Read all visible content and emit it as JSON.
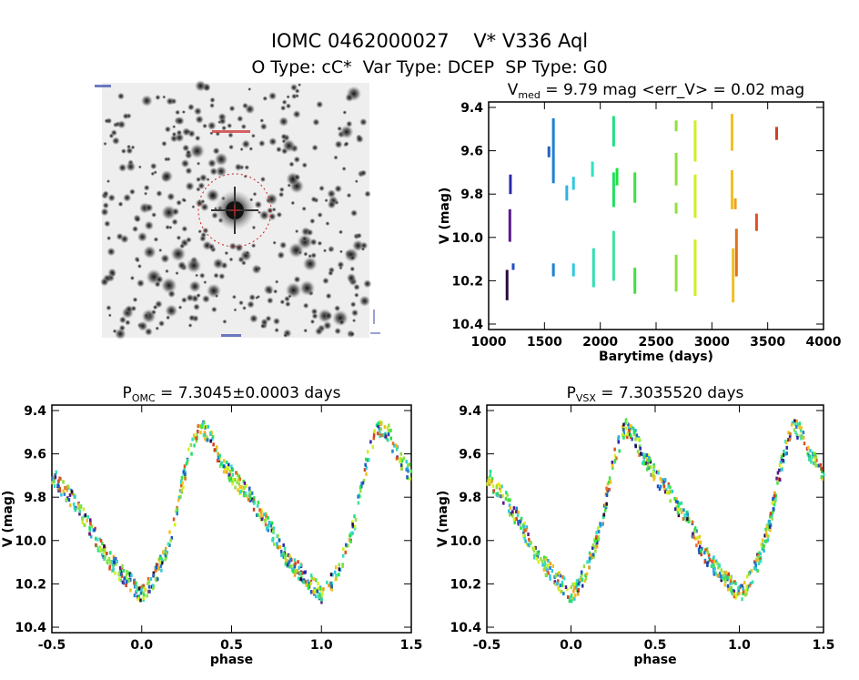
{
  "header": {
    "title": "IOMC 0462000027    V* V336 Aql",
    "subtitle": "O Type: cC*  Var Type: DCEP  SP Type: G0"
  },
  "image_panel": {
    "name": "sky-image-cutout",
    "marker_color": "#cc2222"
  },
  "chart_data": [
    {
      "type": "scatter",
      "title_prefix": "V",
      "title_sub": "med",
      "title_rest": " = 9.79 mag <err_V> = 0.02 mag",
      "xlabel": "Barytime (days)",
      "ylabel": "V (mag)",
      "xlim": [
        1000,
        4000
      ],
      "ylim": [
        10.4,
        9.4
      ],
      "xticks": [
        "1000",
        "1500",
        "2000",
        "2500",
        "3000",
        "3500",
        "4000"
      ],
      "yticks": [
        "9.4",
        "9.6",
        "9.8",
        "10.0",
        "10.2",
        "10.4"
      ],
      "segments": [
        [
          1165,
          10.15,
          10.29,
          "#2a0a3a"
        ],
        [
          1190,
          9.87,
          10.02,
          "#5a1a8a"
        ],
        [
          1195,
          9.71,
          9.8,
          "#2a2aaa"
        ],
        [
          1220,
          10.12,
          10.15,
          "#2050c0"
        ],
        [
          1540,
          9.58,
          9.63,
          "#2060c0"
        ],
        [
          1580,
          9.45,
          9.75,
          "#2080d0"
        ],
        [
          1580,
          10.12,
          10.18,
          "#2080d0"
        ],
        [
          1700,
          9.76,
          9.83,
          "#30b0e0"
        ],
        [
          1760,
          9.72,
          9.78,
          "#30c8e0"
        ],
        [
          1760,
          10.12,
          10.18,
          "#30c8e0"
        ],
        [
          1930,
          9.65,
          9.72,
          "#30e0c0"
        ],
        [
          1940,
          10.05,
          10.23,
          "#30e0b0"
        ],
        [
          2120,
          9.44,
          9.58,
          "#20e080"
        ],
        [
          2120,
          9.7,
          9.86,
          "#20e060"
        ],
        [
          2120,
          9.97,
          10.2,
          "#40e0a0"
        ],
        [
          2150,
          9.68,
          9.76,
          "#20e040"
        ],
        [
          2310,
          9.7,
          9.84,
          "#40e040"
        ],
        [
          2310,
          10.14,
          10.26,
          "#40e040"
        ],
        [
          2680,
          9.46,
          9.51,
          "#90e040"
        ],
        [
          2680,
          9.61,
          9.76,
          "#90e040"
        ],
        [
          2680,
          9.84,
          9.89,
          "#90e040"
        ],
        [
          2680,
          10.08,
          10.25,
          "#90e040"
        ],
        [
          2850,
          9.46,
          9.65,
          "#d0f020"
        ],
        [
          2850,
          9.71,
          9.91,
          "#d0f020"
        ],
        [
          2850,
          10.01,
          10.27,
          "#d0f020"
        ],
        [
          3180,
          9.43,
          9.6,
          "#f0c020"
        ],
        [
          3180,
          9.69,
          9.87,
          "#f0c020"
        ],
        [
          3190,
          10.05,
          10.3,
          "#f0c020"
        ],
        [
          3210,
          9.82,
          9.87,
          "#f0a020"
        ],
        [
          3220,
          9.96,
          10.18,
          "#e07020"
        ],
        [
          3400,
          9.89,
          9.97,
          "#e05020"
        ],
        [
          3580,
          9.49,
          9.55,
          "#d04020"
        ]
      ]
    },
    {
      "type": "scatter",
      "title_prefix": "P",
      "title_sub": "OMC",
      "title_rest": " = 7.3045±0.0003 days",
      "xlabel": "phase",
      "ylabel": "V (mag)",
      "xlim": [
        -0.5,
        1.5
      ],
      "ylim": [
        10.4,
        9.4
      ],
      "xticks": [
        "-0.5",
        "0.0",
        "0.5",
        "1.0",
        "1.5"
      ],
      "yticks": [
        "9.4",
        "9.6",
        "9.8",
        "10.0",
        "10.2",
        "10.4"
      ],
      "template": [
        [
          0.0,
          10.25
        ],
        [
          0.05,
          10.2
        ],
        [
          0.1,
          10.12
        ],
        [
          0.15,
          10.0
        ],
        [
          0.18,
          9.93
        ],
        [
          0.22,
          9.75
        ],
        [
          0.27,
          9.58
        ],
        [
          0.32,
          9.48
        ],
        [
          0.37,
          9.5
        ],
        [
          0.42,
          9.6
        ],
        [
          0.5,
          9.7
        ],
        [
          0.6,
          9.8
        ],
        [
          0.7,
          9.92
        ],
        [
          0.78,
          10.05
        ],
        [
          0.85,
          10.12
        ],
        [
          0.92,
          10.18
        ],
        [
          1.0,
          10.25
        ]
      ]
    },
    {
      "type": "scatter",
      "title_prefix": "P",
      "title_sub": "VSX",
      "title_rest": " = 7.3035520 days",
      "xlabel": "phase",
      "ylabel": "V (mag)",
      "xlim": [
        -0.5,
        1.5
      ],
      "ylim": [
        10.4,
        9.4
      ],
      "xticks": [
        "-0.5",
        "0.0",
        "0.5",
        "1.0",
        "1.5"
      ],
      "yticks": [
        "9.4",
        "9.6",
        "9.8",
        "10.0",
        "10.2",
        "10.4"
      ],
      "template": [
        [
          0.0,
          10.25
        ],
        [
          0.05,
          10.2
        ],
        [
          0.1,
          10.12
        ],
        [
          0.15,
          10.0
        ],
        [
          0.18,
          9.93
        ],
        [
          0.22,
          9.75
        ],
        [
          0.27,
          9.58
        ],
        [
          0.32,
          9.48
        ],
        [
          0.37,
          9.5
        ],
        [
          0.42,
          9.6
        ],
        [
          0.5,
          9.7
        ],
        [
          0.6,
          9.8
        ],
        [
          0.7,
          9.92
        ],
        [
          0.78,
          10.05
        ],
        [
          0.85,
          10.12
        ],
        [
          0.92,
          10.18
        ],
        [
          1.0,
          10.25
        ]
      ]
    }
  ]
}
